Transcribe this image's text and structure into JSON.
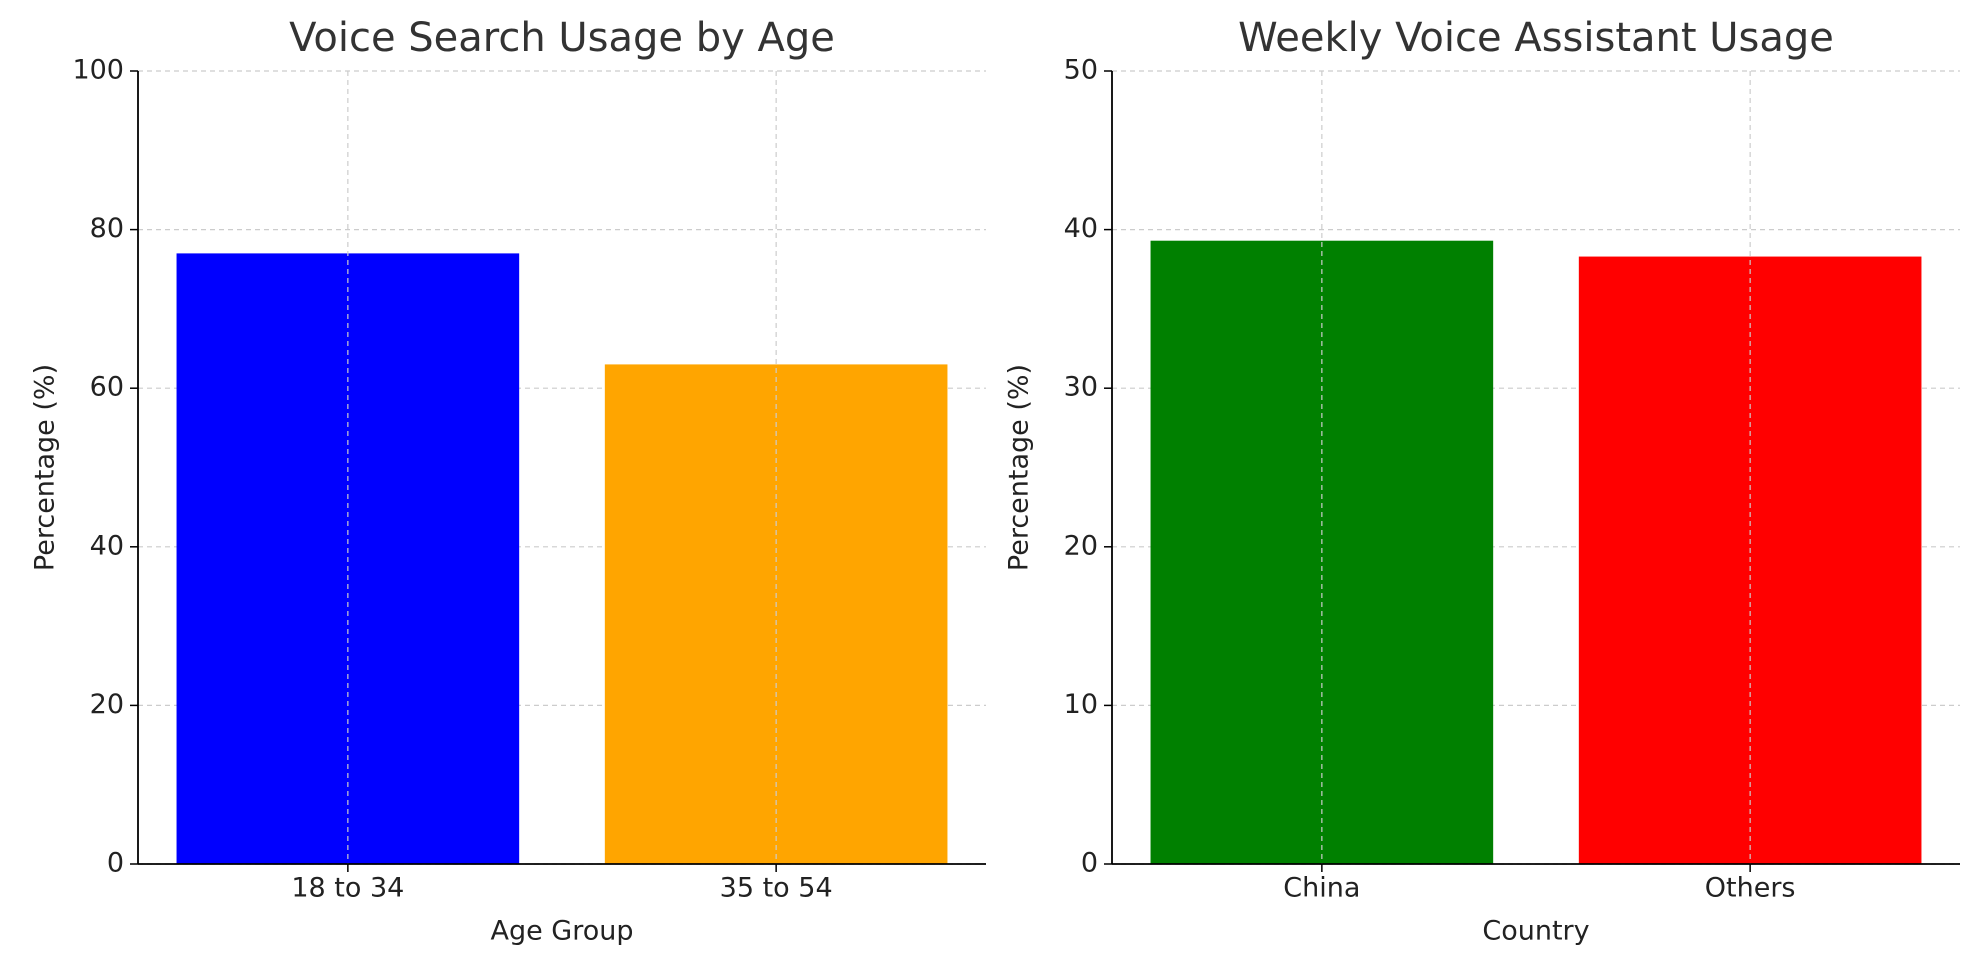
{
  "chart_data": [
    {
      "type": "bar",
      "title": "Voice Search Usage by Age",
      "x_label": "Age Group",
      "y_label": "Percentage (%)",
      "categories": [
        "18 to 34",
        "35 to 54"
      ],
      "values": [
        77,
        63
      ],
      "colors": [
        "#0000ff",
        "#ffa500"
      ],
      "ylim": [
        0,
        100
      ],
      "yticks": [
        0,
        20,
        40,
        60,
        80,
        100
      ],
      "grid": true
    },
    {
      "type": "bar",
      "title": "Weekly Voice Assistant Usage",
      "x_label": "Country",
      "y_label": "Percentage (%)",
      "categories": [
        "China",
        "Others"
      ],
      "values": [
        39.3,
        38.3
      ],
      "colors": [
        "#008000",
        "#ff0000"
      ],
      "ylim": [
        0,
        50
      ],
      "yticks": [
        0,
        10,
        20,
        30,
        40,
        50
      ],
      "grid": true
    }
  ]
}
